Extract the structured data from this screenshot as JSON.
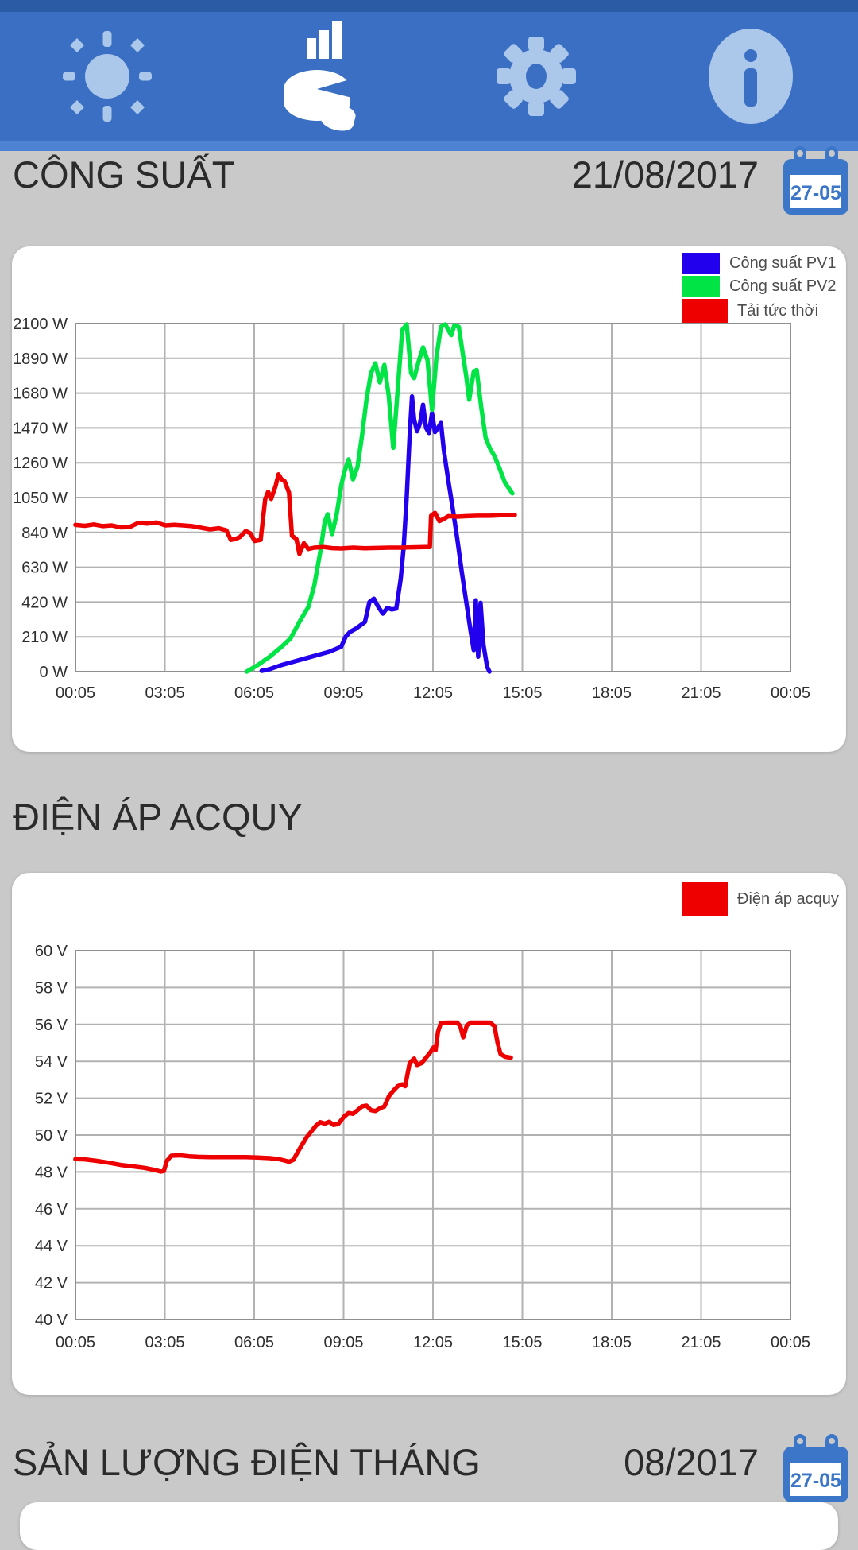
{
  "nav": {
    "items": [
      {
        "name": "brightness",
        "active": false
      },
      {
        "name": "charts",
        "active": true
      },
      {
        "name": "settings",
        "active": false
      },
      {
        "name": "info",
        "active": false
      }
    ]
  },
  "calendar_badge": "27-05",
  "sections": [
    {
      "title": "CÔNG SUẤT",
      "date": "21/08/2017"
    },
    {
      "title": "ĐIỆN ÁP ACQUY",
      "date": ""
    },
    {
      "title": "SẢN LƯỢNG ĐIỆN THÁNG",
      "date": "08/2017"
    }
  ],
  "colors": {
    "status_bar": "#2c5ba6",
    "nav_bar": "#3a6fc3",
    "nav_strip": "#4e82d2",
    "nav_icon": "#abc7ea",
    "nav_icon_active": "#ffffff",
    "background": "#c9c9c9",
    "card": "#ffffff",
    "title_text": "#2b2b2b",
    "axis_text": "#2e2e2e",
    "legend_text": "#4d4d4d",
    "grid": "#b2b2b2",
    "plot_border": "#8f8f8f",
    "calendar_blue": "#3b76c8",
    "pv1_blue": "#2200ee",
    "pv2_green": "#00e545",
    "load_red": "#ee0000",
    "battery_red": "#ee0000"
  },
  "chart_data": [
    {
      "type": "line",
      "section_title": "CÔNG SUẤT",
      "y_unit": "W",
      "ylim": [
        0,
        2100
      ],
      "y_step": 210,
      "ytick_labels_top_down": [
        "2100 W",
        "1890 W",
        "1680 W",
        "1470 W",
        "1260 W",
        "1050 W",
        "840 W",
        "630 W",
        "420 W",
        "210 W",
        "0 W"
      ],
      "xtick_labels": [
        "00:05",
        "03:05",
        "06:05",
        "09:05",
        "12:05",
        "15:05",
        "18:05",
        "21:05",
        "00:05"
      ],
      "x_hours_range": [
        0.083,
        24.083
      ],
      "grid": true,
      "legend_position": "top-right",
      "legend": [
        {
          "label": "Công suất PV1",
          "color": "#2200ee"
        },
        {
          "label": "Công suất PV2",
          "color": "#00e545"
        },
        {
          "label": "Tải tức thời",
          "color": "#ee0000"
        }
      ],
      "series": [
        {
          "name": "Công suất PV1",
          "color": "#2200ee",
          "points": [
            [
              6.33,
              5
            ],
            [
              6.6,
              15
            ],
            [
              7.0,
              40
            ],
            [
              7.4,
              60
            ],
            [
              7.8,
              80
            ],
            [
              8.2,
              100
            ],
            [
              8.6,
              120
            ],
            [
              9.0,
              150
            ],
            [
              9.15,
              210
            ],
            [
              9.3,
              240
            ],
            [
              9.5,
              260
            ],
            [
              9.65,
              280
            ],
            [
              9.8,
              300
            ],
            [
              9.95,
              420
            ],
            [
              10.1,
              440
            ],
            [
              10.25,
              390
            ],
            [
              10.4,
              350
            ],
            [
              10.55,
              385
            ],
            [
              10.7,
              375
            ],
            [
              10.85,
              380
            ],
            [
              11.0,
              560
            ],
            [
              11.1,
              750
            ],
            [
              11.2,
              1050
            ],
            [
              11.3,
              1420
            ],
            [
              11.38,
              1660
            ],
            [
              11.45,
              1520
            ],
            [
              11.55,
              1450
            ],
            [
              11.65,
              1500
            ],
            [
              11.75,
              1610
            ],
            [
              11.85,
              1470
            ],
            [
              11.95,
              1440
            ],
            [
              12.05,
              1560
            ],
            [
              12.15,
              1445
            ],
            [
              12.25,
              1470
            ],
            [
              12.35,
              1500
            ],
            [
              12.45,
              1330
            ],
            [
              12.6,
              1150
            ],
            [
              12.75,
              980
            ],
            [
              12.9,
              800
            ],
            [
              13.05,
              600
            ],
            [
              13.2,
              420
            ],
            [
              13.35,
              240
            ],
            [
              13.45,
              130
            ],
            [
              13.52,
              430
            ],
            [
              13.6,
              90
            ],
            [
              13.68,
              415
            ],
            [
              13.78,
              160
            ],
            [
              13.9,
              30
            ],
            [
              13.98,
              0
            ]
          ]
        },
        {
          "name": "Công suất PV2",
          "color": "#00e545",
          "points": [
            [
              5.83,
              0
            ],
            [
              6.2,
              40
            ],
            [
              6.6,
              90
            ],
            [
              7.0,
              150
            ],
            [
              7.3,
              200
            ],
            [
              7.6,
              300
            ],
            [
              7.9,
              390
            ],
            [
              8.1,
              520
            ],
            [
              8.3,
              720
            ],
            [
              8.45,
              905
            ],
            [
              8.55,
              950
            ],
            [
              8.7,
              830
            ],
            [
              8.85,
              950
            ],
            [
              9.0,
              1120
            ],
            [
              9.1,
              1200
            ],
            [
              9.25,
              1280
            ],
            [
              9.4,
              1160
            ],
            [
              9.55,
              1235
            ],
            [
              9.7,
              1420
            ],
            [
              9.85,
              1640
            ],
            [
              10.0,
              1800
            ],
            [
              10.15,
              1860
            ],
            [
              10.3,
              1745
            ],
            [
              10.45,
              1850
            ],
            [
              10.6,
              1660
            ],
            [
              10.75,
              1350
            ],
            [
              10.9,
              1700
            ],
            [
              11.05,
              2060
            ],
            [
              11.2,
              2095
            ],
            [
              11.35,
              1800
            ],
            [
              11.45,
              1770
            ],
            [
              11.6,
              1870
            ],
            [
              11.75,
              1956
            ],
            [
              11.9,
              1880
            ],
            [
              12.05,
              1580
            ],
            [
              12.2,
              1900
            ],
            [
              12.35,
              2080
            ],
            [
              12.5,
              2095
            ],
            [
              12.6,
              2060
            ],
            [
              12.7,
              2030
            ],
            [
              12.8,
              2090
            ],
            [
              12.95,
              2080
            ],
            [
              13.1,
              1900
            ],
            [
              13.2,
              1780
            ],
            [
              13.3,
              1640
            ],
            [
              13.45,
              1810
            ],
            [
              13.55,
              1820
            ],
            [
              13.7,
              1600
            ],
            [
              13.85,
              1410
            ],
            [
              14.0,
              1345
            ],
            [
              14.15,
              1300
            ],
            [
              14.3,
              1235
            ],
            [
              14.5,
              1140
            ],
            [
              14.75,
              1075
            ]
          ]
        },
        {
          "name": "Tải tức thời",
          "color": "#ee0000",
          "points": [
            [
              0.08,
              885
            ],
            [
              0.4,
              880
            ],
            [
              0.7,
              888
            ],
            [
              1.0,
              878
            ],
            [
              1.3,
              882
            ],
            [
              1.6,
              870
            ],
            [
              1.9,
              872
            ],
            [
              2.2,
              898
            ],
            [
              2.5,
              893
            ],
            [
              2.8,
              900
            ],
            [
              3.1,
              882
            ],
            [
              3.4,
              886
            ],
            [
              3.7,
              882
            ],
            [
              4.0,
              878
            ],
            [
              4.3,
              868
            ],
            [
              4.6,
              858
            ],
            [
              4.9,
              865
            ],
            [
              5.15,
              852
            ],
            [
              5.3,
              795
            ],
            [
              5.45,
              800
            ],
            [
              5.6,
              812
            ],
            [
              5.8,
              848
            ],
            [
              5.95,
              835
            ],
            [
              6.1,
              788
            ],
            [
              6.3,
              795
            ],
            [
              6.45,
              1040
            ],
            [
              6.55,
              1085
            ],
            [
              6.65,
              1042
            ],
            [
              6.8,
              1120
            ],
            [
              6.9,
              1190
            ],
            [
              7.0,
              1160
            ],
            [
              7.1,
              1150
            ],
            [
              7.25,
              1080
            ],
            [
              7.35,
              820
            ],
            [
              7.5,
              800
            ],
            [
              7.6,
              710
            ],
            [
              7.75,
              775
            ],
            [
              7.9,
              740
            ],
            [
              8.1,
              748
            ],
            [
              8.4,
              752
            ],
            [
              8.7,
              745
            ],
            [
              9.0,
              743
            ],
            [
              9.4,
              748
            ],
            [
              9.8,
              744
            ],
            [
              10.2,
              746
            ],
            [
              10.6,
              748
            ],
            [
              11.0,
              748
            ],
            [
              11.4,
              750
            ],
            [
              11.8,
              752
            ],
            [
              11.98,
              752
            ],
            [
              12.02,
              940
            ],
            [
              12.15,
              958
            ],
            [
              12.3,
              908
            ],
            [
              12.45,
              922
            ],
            [
              12.6,
              938
            ],
            [
              12.9,
              935
            ],
            [
              13.2,
              938
            ],
            [
              13.6,
              940
            ],
            [
              14.0,
              940
            ],
            [
              14.4,
              944
            ],
            [
              14.83,
              945
            ]
          ]
        }
      ]
    },
    {
      "type": "line",
      "section_title": "ĐIỆN ÁP ACQUY",
      "y_unit": "V",
      "ylim": [
        40,
        60
      ],
      "y_step": 2,
      "ytick_labels_top_down": [
        "60 V",
        "58 V",
        "56 V",
        "54 V",
        "52 V",
        "50 V",
        "48 V",
        "46 V",
        "44 V",
        "42 V",
        "40 V"
      ],
      "xtick_labels": [
        "00:05",
        "03:05",
        "06:05",
        "09:05",
        "12:05",
        "15:05",
        "18:05",
        "21:05",
        "00:05"
      ],
      "x_hours_range": [
        0.083,
        24.083
      ],
      "grid": true,
      "legend_position": "top-right",
      "legend": [
        {
          "label": "Điện áp acquy",
          "color": "#ee0000"
        }
      ],
      "series": [
        {
          "name": "Điện áp acquy",
          "color": "#ee0000",
          "points": [
            [
              0.08,
              48.7
            ],
            [
              0.4,
              48.68
            ],
            [
              0.8,
              48.6
            ],
            [
              1.2,
              48.5
            ],
            [
              1.6,
              48.38
            ],
            [
              2.0,
              48.3
            ],
            [
              2.4,
              48.22
            ],
            [
              2.7,
              48.12
            ],
            [
              2.95,
              48.02
            ],
            [
              3.05,
              48.05
            ],
            [
              3.15,
              48.6
            ],
            [
              3.3,
              48.88
            ],
            [
              3.6,
              48.9
            ],
            [
              3.9,
              48.85
            ],
            [
              4.2,
              48.82
            ],
            [
              4.6,
              48.8
            ],
            [
              5.0,
              48.8
            ],
            [
              5.4,
              48.8
            ],
            [
              5.8,
              48.8
            ],
            [
              6.2,
              48.78
            ],
            [
              6.6,
              48.75
            ],
            [
              6.9,
              48.7
            ],
            [
              7.1,
              48.62
            ],
            [
              7.25,
              48.55
            ],
            [
              7.4,
              48.66
            ],
            [
              7.55,
              49.1
            ],
            [
              7.7,
              49.5
            ],
            [
              7.85,
              49.9
            ],
            [
              8.0,
              50.2
            ],
            [
              8.15,
              50.5
            ],
            [
              8.3,
              50.7
            ],
            [
              8.45,
              50.62
            ],
            [
              8.6,
              50.72
            ],
            [
              8.75,
              50.55
            ],
            [
              8.9,
              50.6
            ],
            [
              9.1,
              51.0
            ],
            [
              9.25,
              51.2
            ],
            [
              9.4,
              51.15
            ],
            [
              9.55,
              51.35
            ],
            [
              9.7,
              51.55
            ],
            [
              9.85,
              51.6
            ],
            [
              10.0,
              51.35
            ],
            [
              10.15,
              51.3
            ],
            [
              10.3,
              51.45
            ],
            [
              10.45,
              51.55
            ],
            [
              10.6,
              52.1
            ],
            [
              10.75,
              52.4
            ],
            [
              10.9,
              52.65
            ],
            [
              11.05,
              52.75
            ],
            [
              11.15,
              52.65
            ],
            [
              11.3,
              53.9
            ],
            [
              11.45,
              54.15
            ],
            [
              11.55,
              53.8
            ],
            [
              11.7,
              53.9
            ],
            [
              11.85,
              54.2
            ],
            [
              12.0,
              54.5
            ],
            [
              12.1,
              54.75
            ],
            [
              12.17,
              54.6
            ],
            [
              12.25,
              55.6
            ],
            [
              12.35,
              56.08
            ],
            [
              12.6,
              56.1
            ],
            [
              12.9,
              56.1
            ],
            [
              13.0,
              55.9
            ],
            [
              13.1,
              55.3
            ],
            [
              13.22,
              55.95
            ],
            [
              13.35,
              56.1
            ],
            [
              13.7,
              56.1
            ],
            [
              14.0,
              56.1
            ],
            [
              14.15,
              55.9
            ],
            [
              14.25,
              55.0
            ],
            [
              14.35,
              54.4
            ],
            [
              14.5,
              54.25
            ],
            [
              14.7,
              54.2
            ]
          ]
        }
      ]
    }
  ]
}
